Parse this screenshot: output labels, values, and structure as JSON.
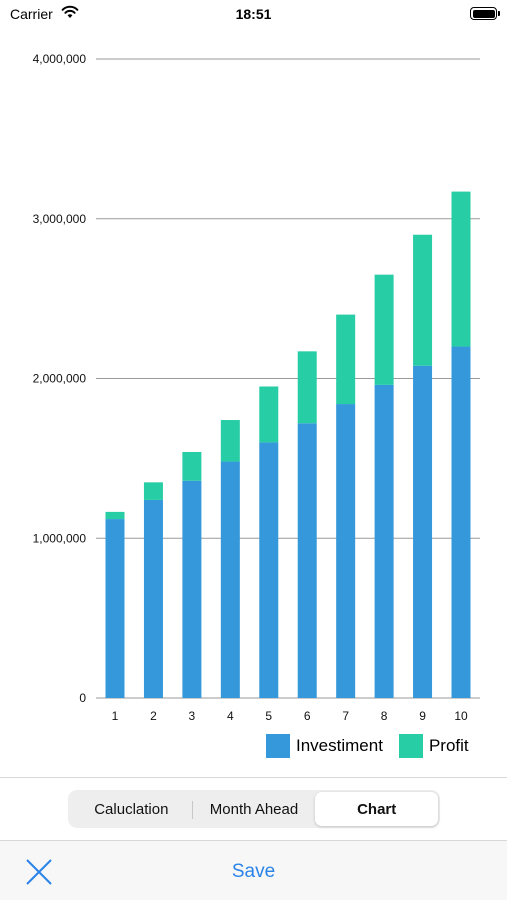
{
  "status_bar": {
    "carrier": "Carrier",
    "time": "18:51"
  },
  "chart_data": {
    "type": "bar",
    "stacked": true,
    "categories": [
      "1",
      "2",
      "3",
      "4",
      "5",
      "6",
      "7",
      "8",
      "9",
      "10"
    ],
    "series": [
      {
        "name": "Investiment",
        "color": "#3498db",
        "values": [
          1120000,
          1240000,
          1360000,
          1480000,
          1600000,
          1720000,
          1840000,
          1960000,
          2080000,
          2200000
        ]
      },
      {
        "name": "Profit",
        "color": "#26cda5",
        "values": [
          45000,
          110000,
          180000,
          260000,
          350000,
          450000,
          560000,
          690000,
          820000,
          970000
        ]
      }
    ],
    "ylim": [
      0,
      4000000
    ],
    "yticks": [
      {
        "value": 0,
        "label": "0"
      },
      {
        "value": 1000000,
        "label": "1,000,000"
      },
      {
        "value": 2000000,
        "label": "2,000,000"
      },
      {
        "value": 3000000,
        "label": "3,000,000"
      },
      {
        "value": 4000000,
        "label": "4,000,000"
      }
    ],
    "grid": true,
    "legend": "bottom-right"
  },
  "segmented_control": {
    "segments": [
      "Caluclation",
      "Month Ahead",
      "Chart"
    ],
    "selected": "Chart"
  },
  "toolbar": {
    "save_label": "Save",
    "close_icon": "close-icon"
  }
}
